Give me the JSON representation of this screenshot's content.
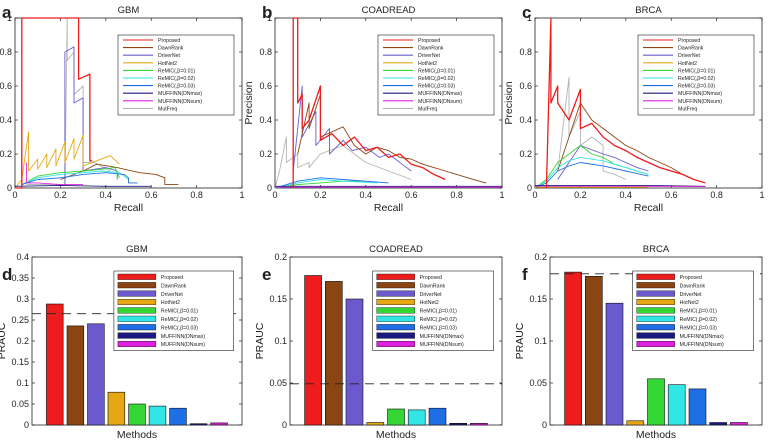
{
  "colors": {
    "Proposed": "#ee1c1c",
    "DawnRank": "#8b4513",
    "DriverNet": "#6a5acd",
    "HotNet2": "#e6a812",
    "ReMIC1": "#33d633",
    "ReMIC2": "#33e6e6",
    "ReMIC3": "#1e6fe6",
    "MUFFINNmax": "#1a1a80",
    "MUFFINNsum": "#e020e0",
    "MutFreq": "#b3b3b3"
  },
  "legend_labels": {
    "Proposed": "Proposed",
    "DawnRank": "DawnRank",
    "DriverNet": "DriverNet",
    "HotNet2": "HotNet2",
    "ReMIC1": "ReMIC(,β=0.01)",
    "ReMIC2": "ReMIC(,β=0.02)",
    "ReMIC3": "ReMIC(,β=0.03)",
    "MUFFINNmax": "MUFFINN(DNmax)",
    "MUFFINNsum": "MUFFINN(DNsum)",
    "MutFreq": "MutFreq"
  },
  "chart_data": [
    {
      "panel": "a",
      "type": "line",
      "title": "GBM",
      "xlabel": "Recall",
      "ylabel": "Precision",
      "xlim": [
        0,
        1
      ],
      "ylim": [
        0,
        1
      ],
      "xticks": [
        "0",
        "0.2",
        "0.4",
        "0.6",
        "0.8",
        "1"
      ],
      "yticks": [
        "0",
        "0.2",
        "0.4",
        "0.6",
        "0.8",
        "1"
      ],
      "series": [
        {
          "key": "MutFreq",
          "x": [
            0.05,
            0.22,
            0.23,
            0.23,
            0.26,
            0.26,
            0.3,
            0.3,
            0.35,
            0.42
          ],
          "y": [
            0.02,
            0.02,
            1.0,
            0.75,
            0.8,
            0.55,
            0.6,
            0.15,
            0.15,
            0.1
          ]
        },
        {
          "key": "DriverNet",
          "x": [
            0.22,
            0.22,
            0.26,
            0.26,
            0.3,
            0.3,
            0.4,
            0.45,
            0.45
          ],
          "y": [
            0.02,
            0.8,
            0.83,
            0.5,
            0.53,
            0.1,
            0.12,
            0.1,
            0.05
          ]
        },
        {
          "key": "HotNet2",
          "x": [
            0.0,
            0.03,
            0.06,
            0.06,
            0.1,
            0.1,
            0.14,
            0.14,
            0.18,
            0.18,
            0.22,
            0.22,
            0.26,
            0.26,
            0.3,
            0.3,
            0.36,
            0.42,
            0.46
          ],
          "y": [
            0.0,
            0.05,
            0.33,
            0.1,
            0.17,
            0.11,
            0.2,
            0.12,
            0.23,
            0.13,
            0.27,
            0.15,
            0.29,
            0.17,
            0.31,
            0.13,
            0.16,
            0.19,
            0.14
          ]
        },
        {
          "key": "DawnRank",
          "x": [
            0.2,
            0.3,
            0.36,
            0.45,
            0.55,
            0.62,
            0.66,
            0.66,
            0.72
          ],
          "y": [
            0.05,
            0.1,
            0.14,
            0.12,
            0.09,
            0.08,
            0.06,
            0.02,
            0.02
          ]
        },
        {
          "key": "ReMIC1",
          "x": [
            0.03,
            0.1,
            0.2,
            0.3,
            0.38,
            0.44,
            0.46
          ],
          "y": [
            0.02,
            0.07,
            0.09,
            0.1,
            0.11,
            0.12,
            0.06
          ]
        },
        {
          "key": "ReMIC2",
          "x": [
            0.03,
            0.1,
            0.2,
            0.3,
            0.38,
            0.46,
            0.5
          ],
          "y": [
            0.02,
            0.06,
            0.08,
            0.09,
            0.1,
            0.09,
            0.05
          ]
        },
        {
          "key": "ReMIC3",
          "x": [
            0.03,
            0.1,
            0.2,
            0.3,
            0.4,
            0.48,
            0.5,
            0.5,
            0.54
          ],
          "y": [
            0.02,
            0.05,
            0.06,
            0.08,
            0.09,
            0.08,
            0.06,
            0.03,
            0.03
          ]
        },
        {
          "key": "MUFFINNmax",
          "x": [
            0.0,
            0.2,
            0.4,
            0.6
          ],
          "y": [
            0.01,
            0.015,
            0.01,
            0.01
          ]
        },
        {
          "key": "MUFFINNsum",
          "x": [
            0.05,
            0.05,
            0.1,
            0.2,
            0.3
          ],
          "y": [
            0.15,
            0.03,
            0.03,
            0.02,
            0.02
          ]
        },
        {
          "key": "Proposed",
          "x": [
            0.0,
            0.03,
            0.03,
            0.2,
            0.2,
            0.28,
            0.28,
            0.33,
            0.33,
            0.34
          ],
          "y": [
            0.0,
            0.0,
            1.0,
            1.0,
            1.0,
            1.0,
            0.64,
            0.67,
            0.16,
            0.16
          ]
        }
      ]
    },
    {
      "panel": "b",
      "type": "line",
      "title": "COADREAD",
      "xlabel": "Recall",
      "ylabel": "Precision",
      "xlim": [
        0,
        1
      ],
      "ylim": [
        0,
        1
      ],
      "xticks": [
        "0",
        "0.2",
        "0.4",
        "0.6",
        "0.8",
        "1"
      ],
      "yticks": [
        "0",
        "0.2",
        "0.4",
        "0.6",
        "0.8",
        "1"
      ],
      "series": [
        {
          "key": "MutFreq",
          "x": [
            0.0,
            0.02,
            0.05,
            0.05,
            0.1,
            0.1,
            0.15,
            0.15,
            0.2,
            0.3,
            0.4,
            0.5,
            0.6
          ],
          "y": [
            0.0,
            0.1,
            0.3,
            0.15,
            0.2,
            0.12,
            0.15,
            0.12,
            0.2,
            0.25,
            0.15,
            0.1,
            0.05
          ]
        },
        {
          "key": "DriverNet",
          "x": [
            0.08,
            0.12,
            0.12,
            0.18,
            0.18,
            0.24,
            0.24,
            0.3,
            0.34,
            0.4,
            0.46,
            0.5,
            0.56,
            0.6
          ],
          "y": [
            0.1,
            0.6,
            0.3,
            0.45,
            0.25,
            0.35,
            0.2,
            0.28,
            0.22,
            0.24,
            0.18,
            0.2,
            0.14,
            0.1
          ]
        },
        {
          "key": "DawnRank",
          "x": [
            0.1,
            0.15,
            0.15,
            0.2,
            0.2,
            0.3,
            0.35,
            0.4,
            0.45,
            0.5,
            0.55,
            0.6,
            0.65,
            0.7,
            0.75,
            0.8,
            0.85,
            0.9,
            0.93
          ],
          "y": [
            0.2,
            0.5,
            0.35,
            0.55,
            0.3,
            0.36,
            0.25,
            0.2,
            0.24,
            0.22,
            0.18,
            0.17,
            0.14,
            0.12,
            0.1,
            0.08,
            0.06,
            0.04,
            0.03
          ]
        },
        {
          "key": "ReMIC1",
          "x": [
            0.0,
            0.1,
            0.2,
            0.3,
            0.4
          ],
          "y": [
            0.0,
            0.02,
            0.03,
            0.04,
            0.04
          ]
        },
        {
          "key": "ReMIC2",
          "x": [
            0.0,
            0.1,
            0.2,
            0.3,
            0.45
          ],
          "y": [
            0.0,
            0.03,
            0.05,
            0.04,
            0.03
          ]
        },
        {
          "key": "ReMIC3",
          "x": [
            0.0,
            0.1,
            0.2,
            0.3,
            0.5
          ],
          "y": [
            0.0,
            0.04,
            0.06,
            0.05,
            0.03
          ]
        },
        {
          "key": "MUFFINNmax",
          "x": [
            0.0,
            0.5,
            1.0
          ],
          "y": [
            0.01,
            0.01,
            0.01
          ]
        },
        {
          "key": "MUFFINNsum",
          "x": [
            0.0,
            0.5,
            1.0
          ],
          "y": [
            0.005,
            0.005,
            0.005
          ]
        },
        {
          "key": "Proposed",
          "x": [
            0.08,
            0.08,
            0.1,
            0.1,
            0.12,
            0.12,
            0.15,
            0.2,
            0.2,
            0.25,
            0.3,
            0.35,
            0.4,
            0.45,
            0.5,
            0.55,
            0.6,
            0.65,
            0.7,
            0.75
          ],
          "y": [
            0.0,
            1.0,
            1.0,
            0.5,
            0.55,
            0.35,
            0.4,
            0.6,
            0.28,
            0.32,
            0.25,
            0.3,
            0.22,
            0.24,
            0.18,
            0.2,
            0.14,
            0.12,
            0.08,
            0.05
          ]
        }
      ]
    },
    {
      "panel": "c",
      "type": "line",
      "title": "BRCA",
      "xlabel": "Recall",
      "ylabel": "Precision",
      "xlim": [
        0,
        1
      ],
      "ylim": [
        0,
        1
      ],
      "xticks": [
        "0",
        "0.2",
        "0.4",
        "0.6",
        "0.8",
        "1"
      ],
      "yticks": [
        "0",
        "0.2",
        "0.4",
        "0.6",
        "0.8",
        "1"
      ],
      "series": [
        {
          "key": "MutFreq",
          "x": [
            0.1,
            0.15,
            0.15,
            0.2,
            0.2,
            0.25,
            0.3,
            0.3,
            0.35,
            0.4
          ],
          "y": [
            0.1,
            0.65,
            0.3,
            0.45,
            0.25,
            0.3,
            0.25,
            0.1,
            0.08,
            0.05
          ]
        },
        {
          "key": "DawnRank",
          "x": [
            0.1,
            0.15,
            0.2,
            0.25,
            0.3,
            0.35,
            0.4,
            0.45,
            0.5,
            0.55,
            0.6,
            0.65
          ],
          "y": [
            0.1,
            0.3,
            0.5,
            0.4,
            0.35,
            0.3,
            0.25,
            0.22,
            0.18,
            0.15,
            0.12,
            0.08
          ]
        },
        {
          "key": "DriverNet",
          "x": [
            0.1,
            0.15,
            0.2,
            0.3,
            0.35,
            0.4,
            0.45,
            0.5
          ],
          "y": [
            0.05,
            0.15,
            0.25,
            0.2,
            0.18,
            0.15,
            0.12,
            0.1
          ]
        },
        {
          "key": "ReMIC1",
          "x": [
            0.0,
            0.05,
            0.1,
            0.15,
            0.2,
            0.25,
            0.3,
            0.35,
            0.4,
            0.45,
            0.5
          ],
          "y": [
            0.0,
            0.05,
            0.15,
            0.2,
            0.25,
            0.2,
            0.18,
            0.14,
            0.12,
            0.1,
            0.08
          ]
        },
        {
          "key": "ReMIC2",
          "x": [
            0.0,
            0.05,
            0.1,
            0.15,
            0.2,
            0.3,
            0.4,
            0.5
          ],
          "y": [
            0.0,
            0.04,
            0.12,
            0.16,
            0.18,
            0.16,
            0.12,
            0.08
          ]
        },
        {
          "key": "ReMIC3",
          "x": [
            0.0,
            0.05,
            0.1,
            0.15,
            0.2,
            0.3,
            0.4,
            0.5
          ],
          "y": [
            0.0,
            0.03,
            0.1,
            0.13,
            0.15,
            0.13,
            0.1,
            0.07
          ]
        },
        {
          "key": "MUFFINNmax",
          "x": [
            0.0,
            0.5,
            0.75
          ],
          "y": [
            0.015,
            0.015,
            0.01
          ]
        },
        {
          "key": "MUFFINNsum",
          "x": [
            0.0,
            0.5,
            0.75
          ],
          "y": [
            0.01,
            0.01,
            0.008
          ]
        },
        {
          "key": "HotNet2",
          "x": [
            0.0,
            0.5
          ],
          "y": [
            0.005,
            0.005
          ]
        },
        {
          "key": "Proposed",
          "x": [
            0.05,
            0.07,
            0.07,
            0.1,
            0.1,
            0.15,
            0.2,
            0.2,
            0.25,
            0.3,
            0.35,
            0.4,
            0.45,
            0.5,
            0.55,
            0.6,
            0.65,
            0.7,
            0.75
          ],
          "y": [
            0.0,
            1.0,
            0.5,
            0.6,
            0.5,
            0.4,
            0.58,
            0.35,
            0.38,
            0.3,
            0.25,
            0.22,
            0.18,
            0.15,
            0.12,
            0.1,
            0.08,
            0.05,
            0.03
          ]
        }
      ]
    },
    {
      "panel": "d",
      "type": "bar",
      "title": "GBM",
      "xlabel": "Methods",
      "ylabel": "PRAUC",
      "ylim": [
        0,
        0.4
      ],
      "yticks": [
        "0",
        "0.05",
        "0.1",
        "0.15",
        "0.2",
        "0.25",
        "0.3",
        "0.35",
        "0.4"
      ],
      "categories": [
        "Proposed",
        "DawnRank",
        "DriverNet",
        "HotNet2",
        "ReMIC1",
        "ReMIC2",
        "ReMIC3",
        "MUFFINNmax",
        "MUFFINNsum"
      ],
      "values": [
        0.288,
        0.236,
        0.241,
        0.078,
        0.05,
        0.045,
        0.04,
        0.003,
        0.005
      ],
      "baseline": 0.265,
      "legend_position": "upper-right"
    },
    {
      "panel": "e",
      "type": "bar",
      "title": "COADREAD",
      "xlabel": "Methods",
      "ylabel": "PRAUC",
      "ylim": [
        0,
        0.2
      ],
      "yticks": [
        "0",
        "0.05",
        "0.1",
        "0.15",
        "0.2"
      ],
      "categories": [
        "Proposed",
        "DawnRank",
        "DriverNet",
        "HotNet2",
        "ReMIC1",
        "ReMIC2",
        "ReMIC3",
        "MUFFINNmax",
        "MUFFINNsum"
      ],
      "values": [
        0.178,
        0.171,
        0.15,
        0.003,
        0.019,
        0.018,
        0.02,
        0.002,
        0.002
      ],
      "baseline": 0.049,
      "legend_position": "upper-right"
    },
    {
      "panel": "f",
      "type": "bar",
      "title": "BRCA",
      "xlabel": "Methods",
      "ylabel": "PRAUC",
      "ylim": [
        0,
        0.2
      ],
      "yticks": [
        "0",
        "0.05",
        "0.1",
        "0.15",
        "0.2"
      ],
      "categories": [
        "Proposed",
        "DawnRank",
        "DriverNet",
        "HotNet2",
        "ReMIC1",
        "ReMIC2",
        "ReMIC3",
        "MUFFINNmax",
        "MUFFINNsum"
      ],
      "values": [
        0.182,
        0.177,
        0.145,
        0.005,
        0.055,
        0.048,
        0.043,
        0.003,
        0.003
      ],
      "baseline": 0.18,
      "legend_position": "upper-right"
    }
  ]
}
